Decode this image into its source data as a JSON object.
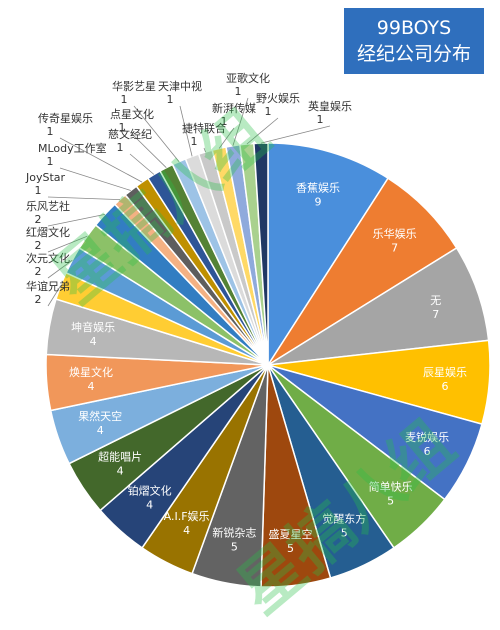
{
  "chart_data": {
    "type": "pie",
    "title": "99BOYS",
    "subtitle": "经纪公司分布",
    "slices": [
      {
        "label": "香蕉娱乐",
        "value": 9,
        "color": "#4a8fdc",
        "text_color": "#ffffff"
      },
      {
        "label": "乐华娱乐",
        "value": 7,
        "color": "#ee7d31",
        "text_color": "#ffffff"
      },
      {
        "label": "无",
        "value": 7,
        "color": "#a5a5a5",
        "text_color": "#ffffff"
      },
      {
        "label": "辰星娱乐",
        "value": 6,
        "color": "#ffc000",
        "text_color": "#ffffff"
      },
      {
        "label": "麦锐娱乐",
        "value": 6,
        "color": "#4472c4",
        "text_color": "#ffffff"
      },
      {
        "label": "简单快乐",
        "value": 5,
        "color": "#70ad47",
        "text_color": "#ffffff"
      },
      {
        "label": "觉醒东方",
        "value": 5,
        "color": "#255e91",
        "text_color": "#ffffff"
      },
      {
        "label": "盛夏星空",
        "value": 5,
        "color": "#9e480e",
        "text_color": "#ffffff"
      },
      {
        "label": "新锐杂志",
        "value": 5,
        "color": "#636363",
        "text_color": "#ffffff"
      },
      {
        "label": "A.I.F娱乐",
        "value": 4,
        "color": "#997300",
        "text_color": "#ffffff"
      },
      {
        "label": "铂熠文化",
        "value": 4,
        "color": "#264478",
        "text_color": "#ffffff"
      },
      {
        "label": "超能唱片",
        "value": 4,
        "color": "#43682b",
        "text_color": "#ffffff"
      },
      {
        "label": "果然天空",
        "value": 4,
        "color": "#7cafdd",
        "text_color": "#ffffff"
      },
      {
        "label": "焕星文化",
        "value": 4,
        "color": "#f1975a",
        "text_color": "#ffffff"
      },
      {
        "label": "坤音娱乐",
        "value": 4,
        "color": "#b7b7b7",
        "text_color": "#ffffff"
      },
      {
        "label": "华谊兄弟",
        "value": 2,
        "color": "#ffcd33",
        "text_color": "#333333"
      },
      {
        "label": "次元文化",
        "value": 2,
        "color": "#5b9bd5",
        "text_color": "#333333"
      },
      {
        "label": "红熠文化",
        "value": 2,
        "color": "#8cc168",
        "text_color": "#333333"
      },
      {
        "label": "乐风艺社",
        "value": 2,
        "color": "#327dc2",
        "text_color": "#333333"
      },
      {
        "label": "JoyStar",
        "value": 1,
        "color": "#f4b183",
        "text_color": "#333333"
      },
      {
        "label": "MLody工作室",
        "value": 1,
        "color": "#5e5e5e",
        "text_color": "#333333"
      },
      {
        "label": "传奇星娱乐",
        "value": 1,
        "color": "#bf9000",
        "text_color": "#333333"
      },
      {
        "label": "慈文经纪",
        "value": 1,
        "color": "#2e5597",
        "text_color": "#333333"
      },
      {
        "label": "点星文化",
        "value": 1,
        "color": "#548235",
        "text_color": "#333333"
      },
      {
        "label": "华影艺星",
        "value": 1,
        "color": "#9dc3e6",
        "text_color": "#333333"
      },
      {
        "label": "天津中视",
        "value": 1,
        "color": "#dbdbdb",
        "text_color": "#333333"
      },
      {
        "label": "捷特联合",
        "value": 1,
        "color": "#c9c9c9",
        "text_color": "#333333"
      },
      {
        "label": "新湃传媒",
        "value": 1,
        "color": "#ffd966",
        "text_color": "#333333"
      },
      {
        "label": "亚歌文化",
        "value": 1,
        "color": "#8faadc",
        "text_color": "#333333"
      },
      {
        "label": "野火娱乐",
        "value": 1,
        "color": "#a9d18e",
        "text_color": "#333333"
      },
      {
        "label": "英皇娱乐",
        "value": 1,
        "color": "#203864",
        "text_color": "#333333"
      }
    ]
  },
  "watermarks": [
    "星搞八组",
    "星搞八组"
  ]
}
